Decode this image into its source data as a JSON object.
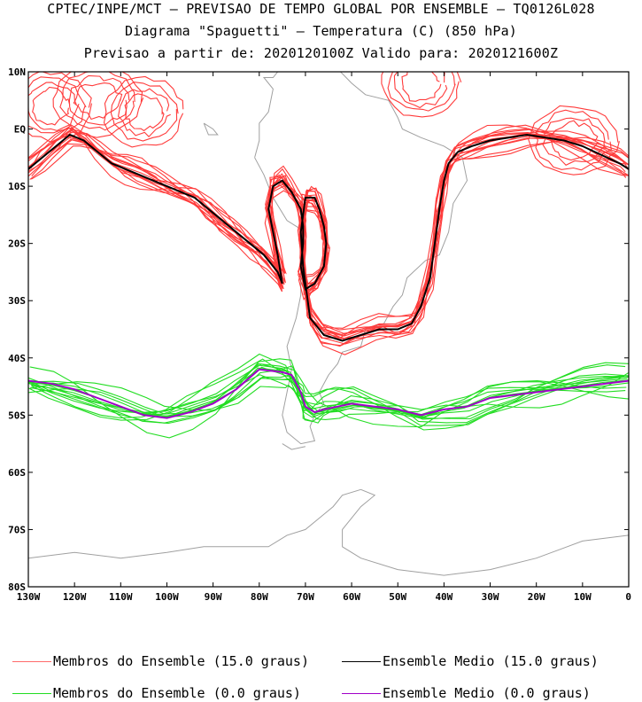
{
  "header": {
    "line1": "CPTEC/INPE/MCT – PREVISAO DE TEMPO GLOBAL POR ENSEMBLE – TQ0126L028",
    "line2": "Diagrama \"Spaguetti\" – Temperatura (C) (850 hPa)",
    "line3": "Previsao a partir de: 2020120100Z  Valido para: 2020121600Z"
  },
  "chart_data": {
    "type": "line",
    "x_ticks": [
      "130W",
      "120W",
      "110W",
      "100W",
      "90W",
      "80W",
      "70W",
      "60W",
      "50W",
      "40W",
      "30W",
      "20W",
      "10W",
      "0"
    ],
    "y_ticks": [
      "10N",
      "EQ",
      "10S",
      "20S",
      "30S",
      "40S",
      "50S",
      "60S",
      "70S",
      "80S"
    ],
    "xlim": [
      -130,
      0
    ],
    "ylim": [
      -80,
      10
    ],
    "grid": false,
    "colors": {
      "member15": "#ff3b3b",
      "mean15": "#000000",
      "member0": "#22dd22",
      "mean0": "#a000c8",
      "coast": "#a0a0a0"
    },
    "series": [
      {
        "name": "Ensemble Medio (15.0 graus)",
        "color": "#000000",
        "x": [
          -130,
          -127,
          -124,
          -121,
          -118,
          -115,
          -112,
          -109,
          -106,
          -103,
          -100,
          -97,
          -94,
          -91,
          -88,
          -85,
          -82,
          -79,
          -76,
          -75,
          -76,
          -78,
          -77,
          -75,
          -73,
          -71,
          -70.5,
          -70.5,
          -71,
          -70,
          -68,
          -66,
          -65.5,
          -66,
          -67,
          -68,
          -70,
          -71,
          -70.5,
          -69,
          -66,
          -62,
          -58,
          -54,
          -50,
          -47,
          -45,
          -43,
          -42,
          -41,
          -40,
          -39,
          -37,
          -34,
          -30,
          -26,
          -22,
          -18,
          -14,
          -10,
          -6,
          -2,
          0
        ],
        "y": [
          -7,
          -5,
          -3,
          -1,
          -2,
          -4,
          -6,
          -7,
          -8,
          -9,
          -10,
          -11,
          -12,
          -14,
          -16,
          -18,
          -20,
          -22,
          -25,
          -27,
          -22,
          -14,
          -10,
          -9,
          -11,
          -14,
          -17,
          -20,
          -24,
          -28,
          -27,
          -24,
          -20,
          -17,
          -14,
          -12,
          -12,
          -18,
          -24,
          -33,
          -36,
          -37,
          -36,
          -35,
          -35,
          -34,
          -31,
          -26,
          -20,
          -14,
          -9,
          -6,
          -4,
          -3,
          -2,
          -1.5,
          -1,
          -1.5,
          -2,
          -3,
          -4.5,
          -6,
          -7
        ]
      },
      {
        "name": "Ensemble Medio (0.0 graus)",
        "color": "#a000c8",
        "x": [
          -130,
          -125,
          -120,
          -115,
          -110,
          -105,
          -100,
          -95,
          -90,
          -85,
          -80,
          -75,
          -73,
          -71,
          -70,
          -68,
          -66,
          -63,
          -60,
          -55,
          -50,
          -45,
          -40,
          -35,
          -30,
          -25,
          -20,
          -15,
          -10,
          -5,
          0
        ],
        "y": [
          -44,
          -44.5,
          -45.5,
          -47,
          -48.5,
          -50,
          -50.5,
          -49.5,
          -48,
          -45.5,
          -42,
          -42.5,
          -43,
          -46,
          -48.5,
          -49.5,
          -49,
          -48.5,
          -48,
          -48.5,
          -49,
          -50,
          -49,
          -48.5,
          -47,
          -46.5,
          -46,
          -45.5,
          -45,
          -44.5,
          -44
        ]
      }
    ]
  },
  "legend": {
    "item1": "Membros do Ensemble (15.0 graus)",
    "item2": "Ensemble Medio (15.0 graus)",
    "item3": "Membros do Ensemble (0.0 graus)",
    "item4": "Ensemble Medio (0.0 graus)"
  }
}
